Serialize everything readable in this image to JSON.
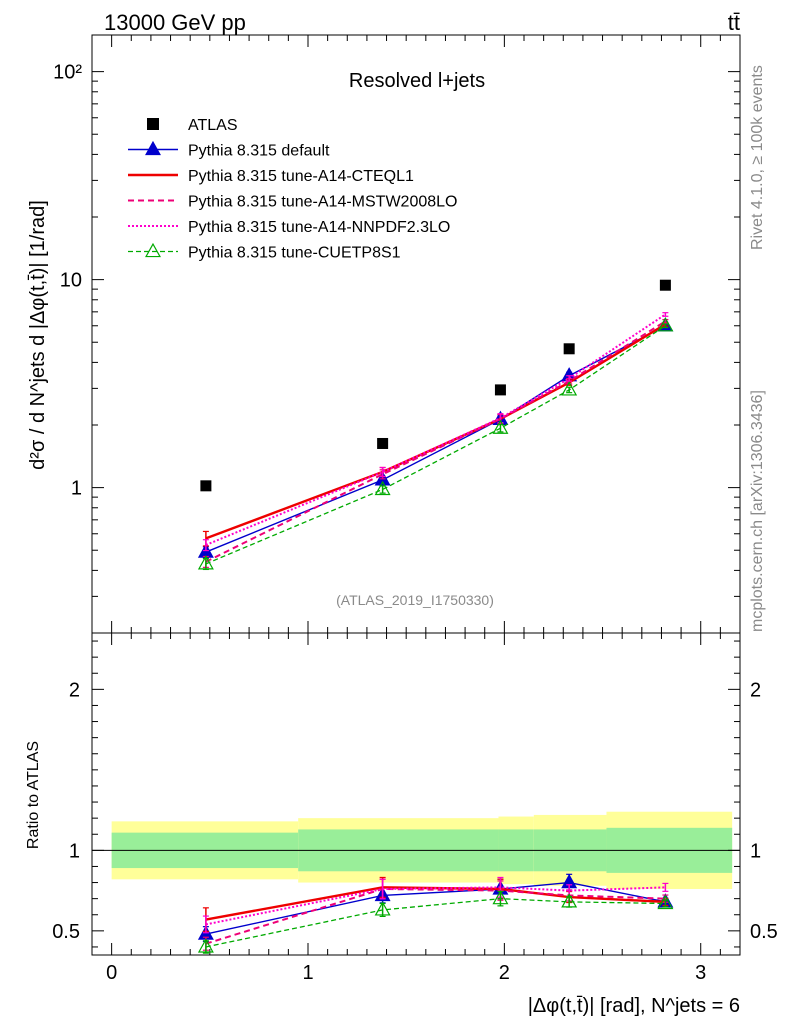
{
  "header": {
    "left": "13000 GeV pp",
    "right": "tt̄"
  },
  "side_text": {
    "rivet": "Rivet 4.1.0, ≥ 100k events",
    "mcplots": "mcplots.cern.ch [arXiv:1306.3436]"
  },
  "chart_data": {
    "type": "line",
    "title": "Resolved l+jets",
    "analysis_id": "(ATLAS_2019_I1750330)",
    "ylabel": "d²σ / d N^jets d |Δφ(t,t̄)| [1/rad]",
    "xlabel": "|Δφ(t,t̄)| [rad], N^jets = 6",
    "ratio_ylabel": "Ratio to ATLAS",
    "yscale": "log",
    "ylim": [
      0.2,
      150
    ],
    "xlim": [
      -0.1,
      3.2
    ],
    "ratio_ylim": [
      0.35,
      2.35
    ],
    "y_tick_labels": [
      "1",
      "10",
      "10²"
    ],
    "x_tick_labels": [
      "0",
      "1",
      "2",
      "3"
    ],
    "ratio_tick_labels": [
      "0.5",
      "1",
      "2"
    ],
    "x": [
      0.48,
      1.38,
      1.98,
      2.33,
      2.82
    ],
    "data": {
      "name": "ATLAS",
      "values": [
        1.02,
        1.63,
        2.95,
        4.65,
        9.4
      ],
      "bin_edges": [
        0,
        0.95,
        1.97,
        2.15,
        2.52,
        3.16
      ],
      "ratio_band_inner": [
        0.11,
        0.13,
        0.13,
        0.13,
        0.14
      ],
      "ratio_band_outer": [
        0.18,
        0.2,
        0.21,
        0.22,
        0.24
      ]
    },
    "series": [
      {
        "name": "Pythia 8.315 default",
        "color": "#0000cc",
        "dash": "",
        "width": 1.4,
        "marker": "triangle-filled",
        "values": [
          0.49,
          1.09,
          2.13,
          3.45,
          6.0
        ],
        "ratio": [
          0.48,
          0.72,
          0.76,
          0.8,
          0.68
        ],
        "errors": [
          0.06,
          0.04,
          0.05,
          0.04,
          0.02
        ]
      },
      {
        "name": "Pythia 8.315 tune-A14-CTEQL1",
        "color": "#ee0000",
        "dash": "",
        "width": 2.4,
        "marker": "none",
        "values": [
          0.57,
          1.19,
          2.14,
          3.2,
          6.1
        ],
        "ratio": [
          0.57,
          0.77,
          0.76,
          0.71,
          0.68
        ],
        "errors": [
          0.08,
          0.05,
          0.05,
          0.03,
          0.02
        ]
      },
      {
        "name": "Pythia 8.315 tune-A14-MSTW2008LO",
        "color": "#ee0077",
        "dash": "6,4",
        "width": 2.0,
        "marker": "none",
        "values": [
          0.44,
          1.16,
          2.14,
          3.25,
          6.3
        ],
        "ratio": [
          0.42,
          0.76,
          0.75,
          0.72,
          0.7
        ],
        "errors": [
          0.06,
          0.05,
          0.05,
          0.03,
          0.02
        ]
      },
      {
        "name": "Pythia 8.315 tune-A14-NNPDF2.3LO",
        "color": "#ff00cc",
        "dash": "2,2",
        "width": 2.0,
        "marker": "none",
        "values": [
          0.53,
          1.19,
          2.16,
          3.35,
          6.8
        ],
        "ratio": [
          0.54,
          0.76,
          0.77,
          0.75,
          0.77
        ],
        "errors": [
          0.06,
          0.05,
          0.05,
          0.03,
          0.02
        ]
      },
      {
        "name": "Pythia 8.315 tune-CUETP8S1",
        "color": "#00aa00",
        "dash": "5,3",
        "width": 1.3,
        "marker": "triangle-open",
        "values": [
          0.43,
          0.98,
          1.93,
          2.95,
          6.0
        ],
        "ratio": [
          0.4,
          0.63,
          0.7,
          0.68,
          0.67
        ],
        "errors": [
          0.06,
          0.04,
          0.04,
          0.03,
          0.02
        ]
      }
    ]
  }
}
